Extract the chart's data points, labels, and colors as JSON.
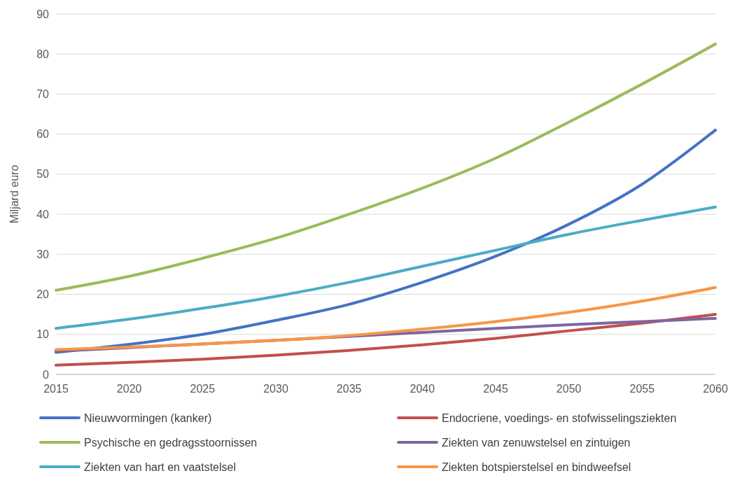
{
  "chart_data": {
    "type": "line",
    "ylabel": "Miljard euro",
    "x": [
      2015,
      2020,
      2025,
      2030,
      2035,
      2040,
      2045,
      2050,
      2055,
      2060
    ],
    "xlim": [
      2015,
      2060
    ],
    "xticks": [
      2015,
      2020,
      2025,
      2030,
      2035,
      2040,
      2045,
      2050,
      2055,
      2060
    ],
    "ylim": [
      0,
      90
    ],
    "yticks": [
      0,
      10,
      20,
      30,
      40,
      50,
      60,
      70,
      80,
      90
    ],
    "grid": "y",
    "legend": "bottom",
    "marker": "none",
    "line_style": "solid",
    "series": [
      {
        "name": "Nieuwvormingen (kanker)",
        "color": "#4472c4",
        "values": [
          5.5,
          7.5,
          10,
          13.5,
          17.5,
          23,
          29.5,
          37.5,
          47.5,
          61
        ]
      },
      {
        "name": "Endocriene, voedings- en stofwisselingsziekten",
        "color": "#c0504d",
        "values": [
          2.3,
          3,
          3.8,
          4.8,
          6,
          7.4,
          9,
          10.9,
          12.8,
          15
        ]
      },
      {
        "name": "Psychische en gedragsstoornissen",
        "color": "#9bbb59",
        "values": [
          21,
          24.5,
          29,
          34,
          40,
          46.5,
          54,
          63,
          72.5,
          82.5
        ]
      },
      {
        "name": "Ziekten van zenuwstelsel en zintuigen",
        "color": "#8064a2",
        "values": [
          5.8,
          6.7,
          7.6,
          8.5,
          9.5,
          10.5,
          11.5,
          12.4,
          13.2,
          14
        ]
      },
      {
        "name": "Ziekten van hart en vaatstelsel",
        "color": "#4bacc6",
        "values": [
          11.5,
          13.8,
          16.5,
          19.5,
          23,
          27,
          31,
          35,
          38.5,
          41.8
        ]
      },
      {
        "name": "Ziekten botspierstelsel en bindweefsel",
        "color": "#f79646",
        "values": [
          6.2,
          6.8,
          7.6,
          8.5,
          9.7,
          11.3,
          13.2,
          15.5,
          18.3,
          21.7
        ]
      }
    ]
  }
}
